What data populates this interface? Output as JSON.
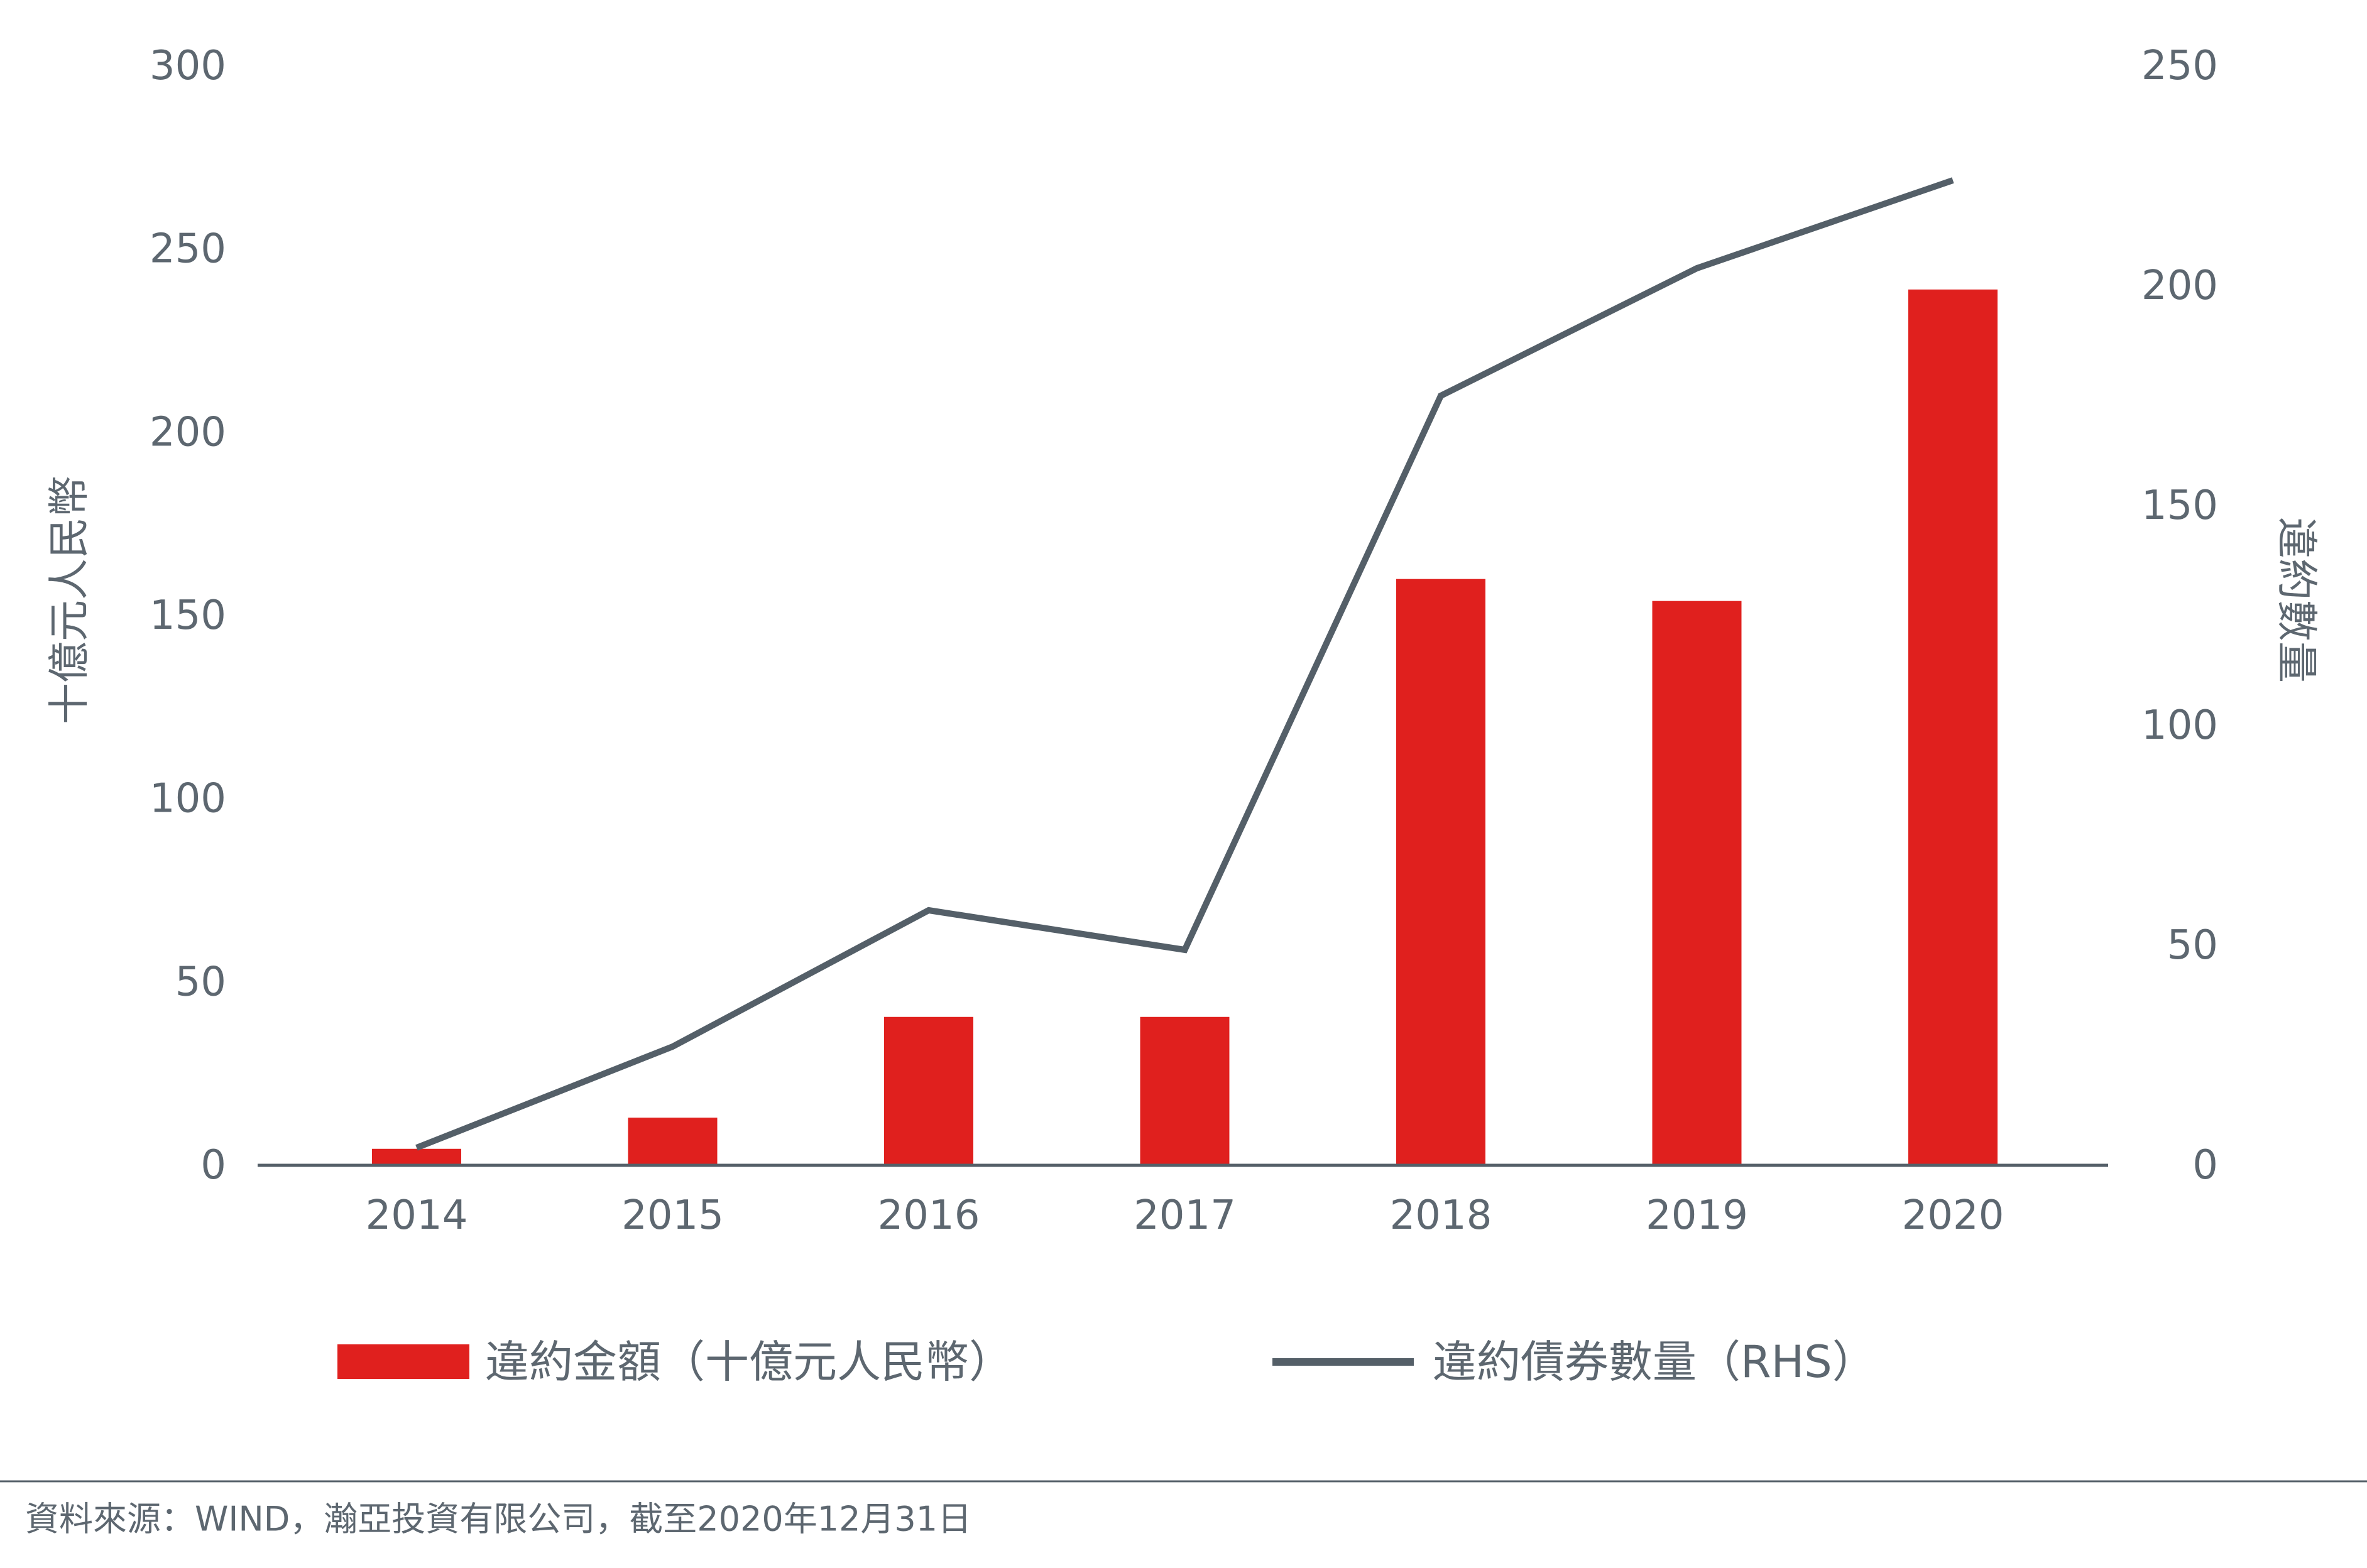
{
  "chart_data": {
    "type": "bar",
    "categories": [
      "2014",
      "2015",
      "2016",
      "2017",
      "2018",
      "2019",
      "2020"
    ],
    "series": [
      {
        "name": "違約金額（十億元人民幣）",
        "type": "bar",
        "axis": "left",
        "values": [
          4.5,
          13,
          40.5,
          40.5,
          160,
          154,
          239
        ]
      },
      {
        "name": "違約債券數量（RHS）",
        "type": "line",
        "axis": "right",
        "values": [
          4,
          27,
          58,
          49,
          175,
          204,
          224
        ]
      }
    ],
    "ylabel": "十億元人民幣",
    "y2label": "違約數量",
    "ylim": [
      0,
      300
    ],
    "y2lim": [
      0,
      250
    ],
    "yticks": [
      "0",
      "50",
      "100",
      "150",
      "200",
      "250",
      "300"
    ],
    "y2ticks": [
      "0",
      "50",
      "100",
      "150",
      "200",
      "250"
    ],
    "grid": false,
    "legend_position": "bottom",
    "colors": {
      "bar": "#e0201e",
      "line": "#545f68",
      "text": "#5d6770",
      "axis": "#545f68"
    }
  },
  "source_note": "資料來源：WIND，瀚亞投資有限公司，截至2020年12月31日"
}
